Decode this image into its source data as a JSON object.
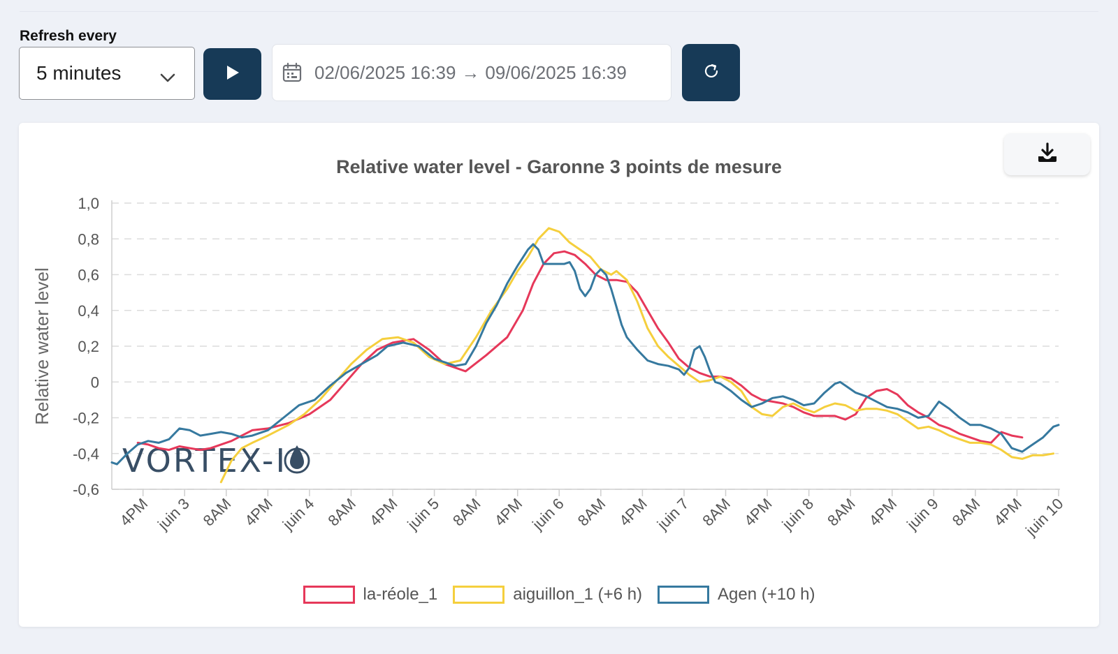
{
  "toolbar": {
    "refresh_label": "Refresh every",
    "refresh_value": "5 minutes",
    "date_from": "02/06/2025 16:39",
    "date_arrow": "→",
    "date_to": "09/06/2025 16:39"
  },
  "icons": {
    "refresh_select": "chevron-down-icon",
    "play": "play-icon",
    "calendar": "calendar-icon",
    "reload": "reload-icon",
    "download": "download-icon"
  },
  "colors": {
    "primary_button": "#173a57",
    "la_reole": "#e6385a",
    "aiguillon": "#f5cf3d",
    "agen": "#36799f"
  },
  "logo_text": "VORTEX-IO",
  "chart_data": {
    "type": "line",
    "title": "Relative water level - Garonne 3 points de mesure",
    "xlabel": "",
    "ylabel": "Relative water level",
    "ylim": [
      -0.6,
      1.0
    ],
    "y_ticks": [
      "1,0",
      "0,8",
      "0,6",
      "0,4",
      "0,2",
      "0",
      "-0,2",
      "-0,4",
      "-0,6"
    ],
    "x_unit": "hours since 02/06/2025 00:00",
    "x_ticks": [
      {
        "x": 16,
        "label": "4PM"
      },
      {
        "x": 24,
        "label": "juin 3"
      },
      {
        "x": 32,
        "label": "8AM"
      },
      {
        "x": 40,
        "label": "4PM"
      },
      {
        "x": 48,
        "label": "juin 4"
      },
      {
        "x": 56,
        "label": "8AM"
      },
      {
        "x": 64,
        "label": "4PM"
      },
      {
        "x": 72,
        "label": "juin 5"
      },
      {
        "x": 80,
        "label": "8AM"
      },
      {
        "x": 88,
        "label": "4PM"
      },
      {
        "x": 96,
        "label": "juin 6"
      },
      {
        "x": 104,
        "label": "8AM"
      },
      {
        "x": 112,
        "label": "4PM"
      },
      {
        "x": 120,
        "label": "juin 7"
      },
      {
        "x": 128,
        "label": "8AM"
      },
      {
        "x": 136,
        "label": "4PM"
      },
      {
        "x": 144,
        "label": "juin 8"
      },
      {
        "x": 152,
        "label": "8AM"
      },
      {
        "x": 160,
        "label": "4PM"
      },
      {
        "x": 168,
        "label": "juin 9"
      },
      {
        "x": 176,
        "label": "8AM"
      },
      {
        "x": 184,
        "label": "4PM"
      },
      {
        "x": 192,
        "label": "juin 10"
      }
    ],
    "xlim": [
      10,
      192
    ],
    "grid": true,
    "legend_position": "bottom",
    "series": [
      {
        "name": "la-réole_1",
        "color": "#e6385a",
        "points": [
          [
            15,
            -0.34
          ],
          [
            17,
            -0.35
          ],
          [
            19,
            -0.37
          ],
          [
            21,
            -0.38
          ],
          [
            23,
            -0.36
          ],
          [
            25,
            -0.37
          ],
          [
            27,
            -0.38
          ],
          [
            29,
            -0.37
          ],
          [
            31,
            -0.35
          ],
          [
            33,
            -0.33
          ],
          [
            35,
            -0.3
          ],
          [
            37,
            -0.27
          ],
          [
            40,
            -0.26
          ],
          [
            44,
            -0.23
          ],
          [
            48,
            -0.18
          ],
          [
            52,
            -0.1
          ],
          [
            55,
            0.0
          ],
          [
            58,
            0.1
          ],
          [
            61,
            0.18
          ],
          [
            64,
            0.22
          ],
          [
            68,
            0.24
          ],
          [
            71,
            0.18
          ],
          [
            74,
            0.1
          ],
          [
            78,
            0.06
          ],
          [
            82,
            0.15
          ],
          [
            86,
            0.25
          ],
          [
            89,
            0.4
          ],
          [
            91,
            0.55
          ],
          [
            93,
            0.66
          ],
          [
            95,
            0.72
          ],
          [
            97,
            0.73
          ],
          [
            99,
            0.71
          ],
          [
            101,
            0.66
          ],
          [
            103,
            0.6
          ],
          [
            105,
            0.57
          ],
          [
            107,
            0.57
          ],
          [
            109,
            0.56
          ],
          [
            111,
            0.5
          ],
          [
            113,
            0.4
          ],
          [
            115,
            0.3
          ],
          [
            117,
            0.22
          ],
          [
            119,
            0.13
          ],
          [
            121,
            0.08
          ],
          [
            123,
            0.05
          ],
          [
            125,
            0.03
          ],
          [
            127,
            0.03
          ],
          [
            129,
            0.02
          ],
          [
            131,
            -0.02
          ],
          [
            133,
            -0.07
          ],
          [
            135,
            -0.1
          ],
          [
            137,
            -0.11
          ],
          [
            139,
            -0.12
          ],
          [
            141,
            -0.14
          ],
          [
            143,
            -0.17
          ],
          [
            145,
            -0.19
          ],
          [
            147,
            -0.19
          ],
          [
            149,
            -0.19
          ],
          [
            151,
            -0.21
          ],
          [
            153,
            -0.18
          ],
          [
            155,
            -0.09
          ],
          [
            157,
            -0.05
          ],
          [
            159,
            -0.04
          ],
          [
            161,
            -0.07
          ],
          [
            163,
            -0.13
          ],
          [
            165,
            -0.17
          ],
          [
            167,
            -0.2
          ],
          [
            169,
            -0.24
          ],
          [
            171,
            -0.26
          ],
          [
            173,
            -0.29
          ],
          [
            175,
            -0.31
          ],
          [
            177,
            -0.33
          ],
          [
            179,
            -0.34
          ],
          [
            181,
            -0.28
          ],
          [
            183,
            -0.3
          ],
          [
            185,
            -0.31
          ]
        ]
      },
      {
        "name": "aiguillon_1 (+6 h)",
        "color": "#f5cf3d",
        "points": [
          [
            31,
            -0.56
          ],
          [
            33,
            -0.44
          ],
          [
            35,
            -0.37
          ],
          [
            37,
            -0.34
          ],
          [
            40,
            -0.3
          ],
          [
            44,
            -0.24
          ],
          [
            47,
            -0.18
          ],
          [
            50,
            -0.1
          ],
          [
            53,
            0.0
          ],
          [
            56,
            0.1
          ],
          [
            59,
            0.18
          ],
          [
            62,
            0.24
          ],
          [
            65,
            0.25
          ],
          [
            68,
            0.22
          ],
          [
            71,
            0.14
          ],
          [
            74,
            0.1
          ],
          [
            77,
            0.12
          ],
          [
            80,
            0.25
          ],
          [
            83,
            0.4
          ],
          [
            86,
            0.52
          ],
          [
            88,
            0.62
          ],
          [
            90,
            0.7
          ],
          [
            92,
            0.8
          ],
          [
            94,
            0.86
          ],
          [
            96,
            0.84
          ],
          [
            98,
            0.78
          ],
          [
            100,
            0.74
          ],
          [
            102,
            0.7
          ],
          [
            104,
            0.63
          ],
          [
            106,
            0.6
          ],
          [
            107,
            0.62
          ],
          [
            109,
            0.57
          ],
          [
            111,
            0.45
          ],
          [
            113,
            0.3
          ],
          [
            115,
            0.2
          ],
          [
            117,
            0.14
          ],
          [
            119,
            0.09
          ],
          [
            121,
            0.04
          ],
          [
            123,
            0.0
          ],
          [
            125,
            0.01
          ],
          [
            127,
            0.03
          ],
          [
            129,
            0.0
          ],
          [
            131,
            -0.05
          ],
          [
            133,
            -0.14
          ],
          [
            135,
            -0.18
          ],
          [
            137,
            -0.19
          ],
          [
            139,
            -0.14
          ],
          [
            141,
            -0.12
          ],
          [
            143,
            -0.15
          ],
          [
            145,
            -0.17
          ],
          [
            147,
            -0.14
          ],
          [
            149,
            -0.12
          ],
          [
            151,
            -0.13
          ],
          [
            153,
            -0.16
          ],
          [
            155,
            -0.15
          ],
          [
            157,
            -0.15
          ],
          [
            159,
            -0.16
          ],
          [
            161,
            -0.18
          ],
          [
            163,
            -0.22
          ],
          [
            165,
            -0.26
          ],
          [
            167,
            -0.25
          ],
          [
            169,
            -0.27
          ],
          [
            171,
            -0.3
          ],
          [
            173,
            -0.32
          ],
          [
            175,
            -0.34
          ],
          [
            177,
            -0.34
          ],
          [
            179,
            -0.35
          ],
          [
            181,
            -0.38
          ],
          [
            183,
            -0.42
          ],
          [
            185,
            -0.43
          ],
          [
            187,
            -0.41
          ],
          [
            189,
            -0.41
          ],
          [
            191,
            -0.4
          ]
        ]
      },
      {
        "name": "Agen (+10 h)",
        "color": "#36799f",
        "points": [
          [
            10,
            -0.45
          ],
          [
            11,
            -0.46
          ],
          [
            13,
            -0.4
          ],
          [
            15,
            -0.35
          ],
          [
            17,
            -0.33
          ],
          [
            19,
            -0.34
          ],
          [
            21,
            -0.32
          ],
          [
            23,
            -0.26
          ],
          [
            25,
            -0.27
          ],
          [
            27,
            -0.3
          ],
          [
            29,
            -0.29
          ],
          [
            31,
            -0.28
          ],
          [
            33,
            -0.29
          ],
          [
            35,
            -0.31
          ],
          [
            37,
            -0.3
          ],
          [
            40,
            -0.27
          ],
          [
            43,
            -0.2
          ],
          [
            46,
            -0.13
          ],
          [
            49,
            -0.1
          ],
          [
            52,
            -0.02
          ],
          [
            55,
            0.05
          ],
          [
            58,
            0.1
          ],
          [
            61,
            0.15
          ],
          [
            63,
            0.2
          ],
          [
            66,
            0.22
          ],
          [
            69,
            0.2
          ],
          [
            72,
            0.13
          ],
          [
            74,
            0.11
          ],
          [
            76,
            0.09
          ],
          [
            78,
            0.1
          ],
          [
            80,
            0.2
          ],
          [
            82,
            0.33
          ],
          [
            84,
            0.43
          ],
          [
            86,
            0.55
          ],
          [
            88,
            0.65
          ],
          [
            90,
            0.74
          ],
          [
            91,
            0.77
          ],
          [
            92,
            0.74
          ],
          [
            93,
            0.66
          ],
          [
            95,
            0.66
          ],
          [
            97,
            0.66
          ],
          [
            98,
            0.67
          ],
          [
            99,
            0.62
          ],
          [
            100,
            0.52
          ],
          [
            101,
            0.48
          ],
          [
            102,
            0.52
          ],
          [
            103,
            0.6
          ],
          [
            104,
            0.63
          ],
          [
            105,
            0.6
          ],
          [
            106,
            0.52
          ],
          [
            107,
            0.42
          ],
          [
            108,
            0.32
          ],
          [
            109,
            0.25
          ],
          [
            111,
            0.18
          ],
          [
            113,
            0.12
          ],
          [
            115,
            0.1
          ],
          [
            117,
            0.09
          ],
          [
            119,
            0.07
          ],
          [
            120,
            0.04
          ],
          [
            121,
            0.08
          ],
          [
            122,
            0.18
          ],
          [
            123,
            0.2
          ],
          [
            124,
            0.14
          ],
          [
            125,
            0.06
          ],
          [
            126,
            0.0
          ],
          [
            127,
            -0.01
          ],
          [
            129,
            -0.05
          ],
          [
            131,
            -0.1
          ],
          [
            133,
            -0.14
          ],
          [
            135,
            -0.12
          ],
          [
            137,
            -0.09
          ],
          [
            139,
            -0.08
          ],
          [
            141,
            -0.1
          ],
          [
            143,
            -0.13
          ],
          [
            145,
            -0.12
          ],
          [
            147,
            -0.06
          ],
          [
            149,
            -0.01
          ],
          [
            150,
            0.0
          ],
          [
            151,
            -0.02
          ],
          [
            153,
            -0.06
          ],
          [
            155,
            -0.08
          ],
          [
            157,
            -0.11
          ],
          [
            159,
            -0.14
          ],
          [
            161,
            -0.15
          ],
          [
            163,
            -0.17
          ],
          [
            165,
            -0.2
          ],
          [
            167,
            -0.19
          ],
          [
            169,
            -0.11
          ],
          [
            171,
            -0.15
          ],
          [
            173,
            -0.2
          ],
          [
            175,
            -0.24
          ],
          [
            177,
            -0.24
          ],
          [
            179,
            -0.26
          ],
          [
            181,
            -0.29
          ],
          [
            183,
            -0.37
          ],
          [
            185,
            -0.39
          ],
          [
            187,
            -0.35
          ],
          [
            189,
            -0.31
          ],
          [
            191,
            -0.25
          ],
          [
            192,
            -0.24
          ]
        ]
      }
    ]
  }
}
